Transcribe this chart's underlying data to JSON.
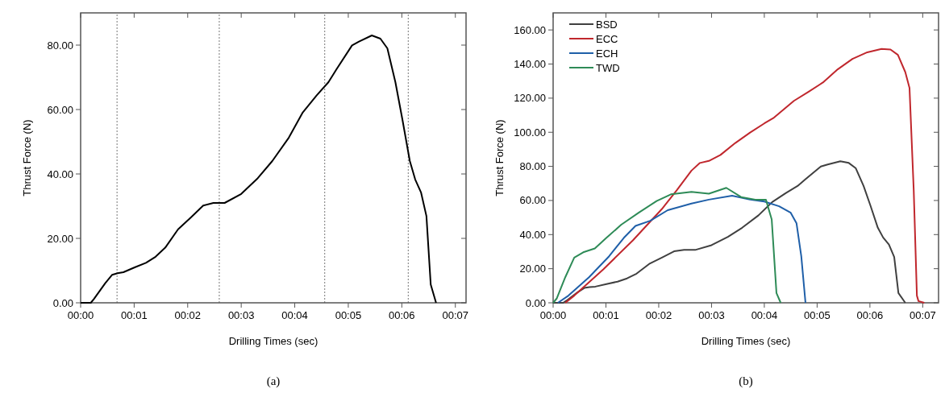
{
  "chart_data": [
    {
      "type": "line",
      "title": "(a)",
      "xlabel": "Drilling Times (sec)",
      "ylabel": "Thrust Force (N)",
      "xlim": [
        0,
        7.2
      ],
      "ylim": [
        0,
        90
      ],
      "xticks": [
        {
          "value": 0,
          "label": "00:00"
        },
        {
          "value": 1,
          "label": "00:01"
        },
        {
          "value": 2,
          "label": "00:02"
        },
        {
          "value": 3,
          "label": "00:03"
        },
        {
          "value": 4,
          "label": "00:04"
        },
        {
          "value": 5,
          "label": "00:05"
        },
        {
          "value": 6,
          "label": "00:06"
        },
        {
          "value": 7,
          "label": "00:07"
        }
      ],
      "yticks": [
        {
          "value": 0,
          "label": "0.00"
        },
        {
          "value": 20,
          "label": "20.00"
        },
        {
          "value": 40,
          "label": "40.00"
        },
        {
          "value": 60,
          "label": "60.00"
        },
        {
          "value": 80,
          "label": "80.00"
        }
      ],
      "grid": false,
      "legend": false,
      "ref_lines": [
        {
          "axis": "x",
          "value": 0.68,
          "color": "#777777",
          "line_style": "dotted"
        },
        {
          "axis": "x",
          "value": 2.59,
          "color": "#777777",
          "line_style": "dotted"
        },
        {
          "axis": "x",
          "value": 4.56,
          "color": "#777777",
          "line_style": "dotted"
        },
        {
          "axis": "x",
          "value": 6.12,
          "color": "#777777",
          "line_style": "dotted"
        }
      ],
      "series": [
        {
          "color": "#000000",
          "x": [
            0,
            0.19,
            0.25,
            0.46,
            0.59,
            0.69,
            0.8,
            1.01,
            1.22,
            1.4,
            1.58,
            1.82,
            2.06,
            2.29,
            2.48,
            2.69,
            3.0,
            3.31,
            3.58,
            3.89,
            4.15,
            4.41,
            4.63,
            4.78,
            5.07,
            5.2,
            5.44,
            5.6,
            5.73,
            5.88,
            6.01,
            6.15,
            6.25,
            6.36,
            6.46,
            6.54,
            6.64
          ],
          "values": [
            0,
            0,
            1.2,
            6.1,
            8.7,
            9.2,
            9.5,
            11,
            12.4,
            14.3,
            17.1,
            22.8,
            26.5,
            30.2,
            31,
            31,
            33.8,
            38.7,
            44,
            51.3,
            59.1,
            64.4,
            68.5,
            72.5,
            79.9,
            81.1,
            83,
            82,
            79,
            68.5,
            57,
            44,
            38.3,
            34.2,
            26.9,
            5.7,
            0
          ]
        }
      ]
    },
    {
      "type": "line",
      "title": "(b)",
      "xlabel": "Drilling Times (sec)",
      "ylabel": "Thrust Force (N)",
      "xlim": [
        0,
        7.3
      ],
      "ylim": [
        0,
        170
      ],
      "xticks": [
        {
          "value": 0,
          "label": "00:00"
        },
        {
          "value": 1,
          "label": "00:01"
        },
        {
          "value": 2,
          "label": "00:02"
        },
        {
          "value": 3,
          "label": "00:03"
        },
        {
          "value": 4,
          "label": "00:04"
        },
        {
          "value": 5,
          "label": "00:05"
        },
        {
          "value": 6,
          "label": "00:06"
        },
        {
          "value": 7,
          "label": "00:07"
        }
      ],
      "yticks": [
        {
          "value": 0,
          "label": "0.00"
        },
        {
          "value": 20,
          "label": "20.00"
        },
        {
          "value": 40,
          "label": "40.00"
        },
        {
          "value": 60,
          "label": "60.00"
        },
        {
          "value": 80,
          "label": "80.00"
        },
        {
          "value": 100,
          "label": "100.00"
        },
        {
          "value": 120,
          "label": "120.00"
        },
        {
          "value": 140,
          "label": "140.00"
        },
        {
          "value": 160,
          "label": "160.00"
        }
      ],
      "grid": false,
      "legend": "top left",
      "series": [
        {
          "name": "BSD",
          "color": "#404040",
          "x": [
            0,
            0.19,
            0.25,
            0.46,
            0.59,
            0.69,
            0.8,
            1.01,
            1.22,
            1.4,
            1.58,
            1.82,
            2.06,
            2.29,
            2.48,
            2.69,
            3.0,
            3.31,
            3.58,
            3.89,
            4.15,
            4.41,
            4.63,
            4.78,
            5.07,
            5.2,
            5.44,
            5.6,
            5.73,
            5.88,
            6.01,
            6.15,
            6.25,
            6.36,
            6.46,
            6.54,
            6.67
          ],
          "values": [
            0,
            0,
            1.2,
            6.1,
            8.7,
            9.2,
            9.5,
            11,
            12.4,
            14.3,
            17.1,
            22.8,
            26.5,
            30.2,
            31,
            31,
            33.8,
            38.7,
            44,
            51.3,
            59.1,
            64.4,
            68.5,
            72.5,
            79.9,
            81.1,
            83,
            82,
            79,
            68.5,
            57,
            44,
            38.3,
            34.2,
            26.9,
            5.7,
            0
          ]
        },
        {
          "name": "ECC",
          "color": "#c0272d",
          "x": [
            0.23,
            0.4,
            0.95,
            1.51,
            2.06,
            2.34,
            2.62,
            2.78,
            2.95,
            3.17,
            3.45,
            3.73,
            4.0,
            4.17,
            4.56,
            4.84,
            5.11,
            5.39,
            5.67,
            5.95,
            6.22,
            6.39,
            6.53,
            6.67,
            6.75,
            6.83,
            6.89,
            6.92,
            7.03
          ],
          "values": [
            0,
            4.2,
            19.6,
            36.6,
            55,
            65.9,
            77.5,
            82,
            83.2,
            86.7,
            93.7,
            99.8,
            105.2,
            108.3,
            118.4,
            123.8,
            129.2,
            136.9,
            143,
            146.9,
            148.9,
            148.5,
            145.4,
            135.3,
            126,
            65.9,
            4.2,
            1,
            0
          ]
        },
        {
          "name": "ECH",
          "color": "#1f5fa8",
          "x": [
            0.09,
            0.29,
            0.68,
            1.06,
            1.34,
            1.56,
            1.84,
            2.17,
            2.62,
            2.95,
            3.39,
            3.73,
            4.0,
            4.28,
            4.5,
            4.61,
            4.7,
            4.78
          ],
          "values": [
            0,
            4.2,
            15,
            27.3,
            38.1,
            45.1,
            48.1,
            54.3,
            58.2,
            60.5,
            62.8,
            60.5,
            59.4,
            56.6,
            52.8,
            46.6,
            27.3,
            0
          ]
        },
        {
          "name": "TWD",
          "color": "#2e8b57",
          "x": [
            0,
            0.07,
            0.23,
            0.4,
            0.57,
            0.79,
            1.01,
            1.29,
            1.62,
            1.96,
            2.23,
            2.62,
            2.95,
            3.28,
            3.56,
            3.83,
            4.03,
            4.14,
            4.23,
            4.31
          ],
          "values": [
            0,
            2.6,
            15,
            26.5,
            29.6,
            31.9,
            38.1,
            45.8,
            52.8,
            59.7,
            63.6,
            65.1,
            64,
            67.4,
            62,
            60.5,
            60.5,
            48.9,
            5.7,
            0
          ]
        }
      ]
    }
  ]
}
